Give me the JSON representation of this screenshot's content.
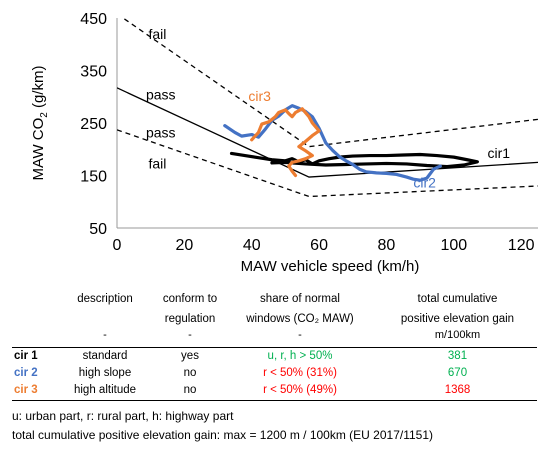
{
  "chart_data": {
    "type": "line",
    "title": "",
    "xlabel": "MAW vehicle speed  (km/h)",
    "ylabel_main": "MAW CO",
    "ylabel_sub": "2",
    "ylabel_unit": " (g/km)",
    "xlim": [
      0,
      125
    ],
    "ylim": [
      50,
      450
    ],
    "xticks": [
      0,
      20,
      40,
      60,
      80,
      100,
      120
    ],
    "yticks": [
      50,
      150,
      250,
      350,
      450
    ],
    "grid": false,
    "reference_lines": [
      {
        "style": "dashed",
        "points": [
          [
            0,
            458
          ],
          [
            57,
            205
          ],
          [
            125,
            257
          ]
        ]
      },
      {
        "style": "solid",
        "points": [
          [
            0,
            317
          ],
          [
            57,
            147
          ],
          [
            125,
            175
          ]
        ]
      },
      {
        "style": "dashed",
        "points": [
          [
            0,
            237
          ],
          [
            57,
            110
          ],
          [
            125,
            130
          ]
        ]
      }
    ],
    "region_labels": [
      {
        "text": "fail",
        "x": 12,
        "y": 410
      },
      {
        "text": "pass",
        "x": 13,
        "y": 295
      },
      {
        "text": "pass",
        "x": 13,
        "y": 222
      },
      {
        "text": "fail",
        "x": 12,
        "y": 163
      }
    ],
    "series": [
      {
        "name": "cir1",
        "color": "#000000",
        "x": [
          34,
          38,
          42,
          46,
          50,
          52,
          54,
          56,
          58,
          60,
          63,
          66,
          70,
          75,
          80,
          85,
          90,
          95,
          100,
          104,
          107,
          103,
          98,
          92,
          86,
          80,
          74,
          68,
          62,
          56,
          50,
          46
        ],
        "y": [
          192,
          188,
          184,
          180,
          178,
          182,
          176,
          180,
          172,
          178,
          182,
          185,
          187,
          188,
          188,
          189,
          190,
          188,
          185,
          180,
          176,
          170,
          167,
          169,
          172,
          173,
          172,
          171,
          170,
          172,
          175,
          174
        ]
      },
      {
        "name": "cir2",
        "color": "#4472C4",
        "x": [
          32,
          35,
          37,
          40,
          42,
          44,
          46,
          48,
          50,
          52,
          54,
          56,
          58,
          60,
          62,
          64,
          66,
          68,
          70,
          72,
          74,
          77,
          80,
          83,
          86,
          88,
          90,
          92,
          94,
          96
        ],
        "y": [
          245,
          232,
          225,
          228,
          223,
          238,
          255,
          263,
          275,
          283,
          278,
          272,
          262,
          240,
          212,
          198,
          186,
          178,
          171,
          162,
          157,
          155,
          154,
          152,
          147,
          143,
          141,
          145,
          162,
          168
        ]
      },
      {
        "name": "cir3",
        "color": "#ED7D31",
        "x": [
          40,
          42,
          43,
          45,
          47,
          48,
          50,
          51,
          52,
          53,
          55,
          57,
          58,
          60,
          58,
          56,
          54,
          56,
          58,
          56,
          54,
          52,
          51,
          52,
          53
        ],
        "y": [
          218,
          232,
          248,
          252,
          262,
          270,
          275,
          268,
          262,
          270,
          277,
          262,
          250,
          235,
          226,
          215,
          205,
          197,
          188,
          182,
          178,
          175,
          168,
          158,
          150
        ]
      }
    ],
    "series_labels": [
      {
        "text": "cir1",
        "x": 110,
        "y": 183,
        "color": "#000000"
      },
      {
        "text": "cir2",
        "x": 88,
        "y": 127,
        "color": "#4472C4"
      },
      {
        "text": "cir3",
        "x": 39,
        "y": 292,
        "color": "#ED7D31"
      }
    ]
  },
  "table": {
    "headers": {
      "description": [
        "description"
      ],
      "conform": [
        "conform to",
        "regulation"
      ],
      "share": [
        "share of normal",
        "windows (CO₂ MAW)"
      ],
      "elevation": [
        "total cumulative",
        "positive elevation gain"
      ]
    },
    "subheaders": {
      "description": "-",
      "conform": "-",
      "share": "-",
      "elevation": "m/100km"
    },
    "rows": [
      {
        "name": "cir 1",
        "name_color": "#000000",
        "description": "standard",
        "conform": "yes",
        "share": "u, r, h > 50%",
        "share_color": "#00B050",
        "elevation": "381",
        "elevation_color": "#00B050"
      },
      {
        "name": "cir 2",
        "name_color": "#4472C4",
        "description": "high slope",
        "conform": "no",
        "share": "r < 50% (31%)",
        "share_color": "#FF0000",
        "elevation": "670",
        "elevation_color": "#00B050"
      },
      {
        "name": "cir 3",
        "name_color": "#ED7D31",
        "description": "high altitude",
        "conform": "no",
        "share": "r < 50% (49%)",
        "share_color": "#FF0000",
        "elevation": "1368",
        "elevation_color": "#FF0000"
      }
    ]
  },
  "notes": [
    "u: urban part, r: rural part, h: highway part",
    "total cumulative positive elevation gain: max = 1200 m / 100km (EU 2017/1151)"
  ]
}
